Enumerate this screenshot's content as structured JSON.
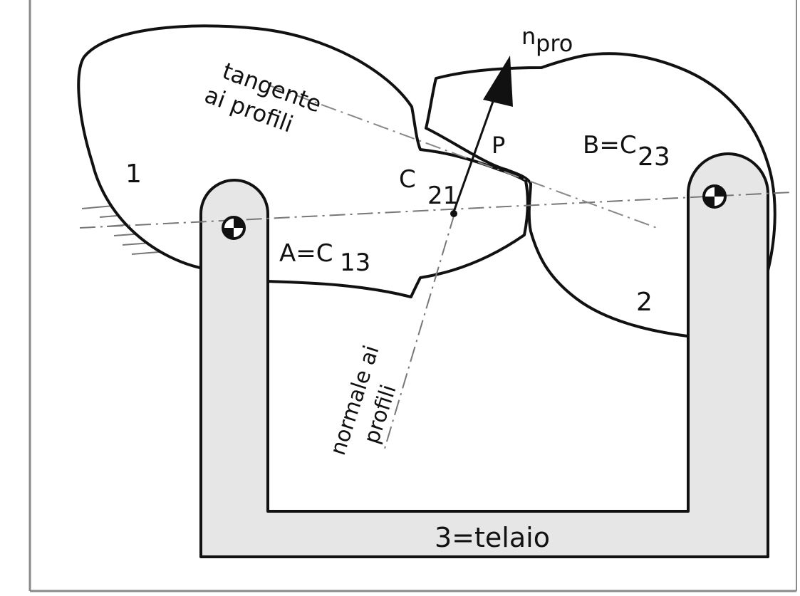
{
  "colors": {
    "background": "#ffffff",
    "outline": "#111111",
    "frame_fill": "#e6e6e6",
    "border": "#8a8a8a"
  },
  "labels": {
    "body_1": "1",
    "body_2": "2",
    "frame": "3=telaio",
    "joint_A_main": "A=C",
    "joint_A_sub": "13",
    "joint_B_main": "B=C",
    "joint_B_sub": "23",
    "contact_main": "C",
    "contact_sub": "21",
    "point_P": "P",
    "normal_vector_main": "n",
    "normal_vector_sub": "pro",
    "tangent_line_1": "tangente",
    "tangent_line_2": "ai profili",
    "normal_line_1": "normale ai",
    "normal_line_2": "profili"
  }
}
